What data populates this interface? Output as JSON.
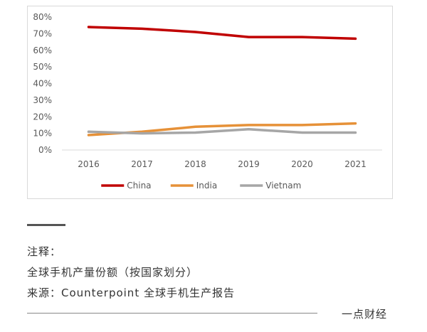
{
  "chart_data": {
    "type": "line",
    "x": [
      "2016",
      "2017",
      "2018",
      "2019",
      "2020",
      "2021"
    ],
    "y_ticks": [
      "0%",
      "10%",
      "20%",
      "30%",
      "40%",
      "50%",
      "60%",
      "70%",
      "80%"
    ],
    "ylim": [
      0,
      80
    ],
    "unit": "%",
    "grid": false,
    "legend_position": "bottom",
    "series": [
      {
        "name": "China",
        "color": "#c00000",
        "values": [
          74,
          73,
          71,
          68,
          68,
          67
        ]
      },
      {
        "name": "India",
        "color": "#e69138",
        "values": [
          9,
          11,
          14,
          15,
          15,
          16
        ]
      },
      {
        "name": "Vietnam",
        "color": "#a6a6a6",
        "values": [
          11,
          10,
          10.5,
          12.5,
          10.5,
          10.5
        ]
      }
    ]
  },
  "notes": {
    "line1": "注释：",
    "line2": "全球手机产量份额（按国家划分）",
    "line3": "来源：Counterpoint 全球手机生产报告"
  },
  "brand": "一点财经"
}
